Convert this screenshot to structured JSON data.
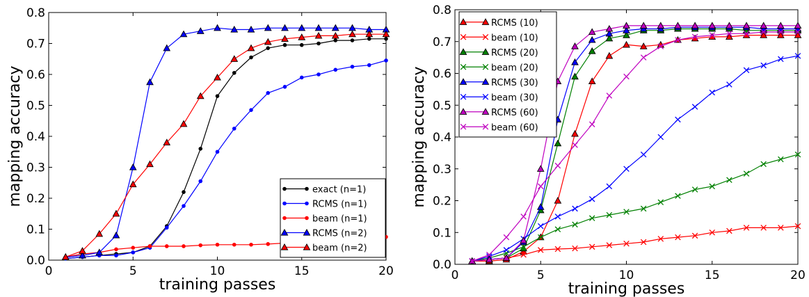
{
  "chart_data": [
    {
      "type": "line",
      "xlabel": "training passes",
      "ylabel": "mapping accuracy",
      "xlim": [
        0,
        20
      ],
      "ylim": [
        0,
        0.8
      ],
      "xticks": [
        "0",
        "5",
        "10",
        "15",
        "20"
      ],
      "yticks": [
        "0.0",
        "0.1",
        "0.2",
        "0.3",
        "0.4",
        "0.5",
        "0.6",
        "0.7",
        "0.8"
      ],
      "grid": false,
      "legend_position": "bottom-right",
      "x": [
        1,
        2,
        3,
        4,
        5,
        6,
        7,
        8,
        9,
        10,
        11,
        12,
        13,
        14,
        15,
        16,
        17,
        18,
        19,
        20
      ],
      "series": [
        {
          "name": "exact (n=1)",
          "color": "#000000",
          "marker": "dot",
          "values": [
            0.005,
            0.01,
            0.015,
            0.02,
            0.025,
            0.045,
            0.11,
            0.22,
            0.36,
            0.53,
            0.605,
            0.655,
            0.685,
            0.695,
            0.695,
            0.7,
            0.71,
            0.71,
            0.715,
            0.715
          ]
        },
        {
          "name": "RCMS (n=1)",
          "color": "#0000ff",
          "marker": "dot",
          "values": [
            0.005,
            0.01,
            0.015,
            0.015,
            0.025,
            0.04,
            0.105,
            0.175,
            0.255,
            0.35,
            0.425,
            0.485,
            0.54,
            0.56,
            0.59,
            0.6,
            0.615,
            0.625,
            0.63,
            0.645
          ]
        },
        {
          "name": "beam (n=1)",
          "color": "#ff0000",
          "marker": "dot",
          "values": [
            0.01,
            0.02,
            0.025,
            0.035,
            0.04,
            0.045,
            0.045,
            0.045,
            0.048,
            0.05,
            0.05,
            0.05,
            0.052,
            0.055,
            0.055,
            0.058,
            0.06,
            0.065,
            0.07,
            0.075
          ]
        },
        {
          "name": "RCMS (n=2)",
          "color": "#0000ff",
          "marker": "triangle",
          "values": [
            0.01,
            0.015,
            0.025,
            0.08,
            0.3,
            0.575,
            0.685,
            0.73,
            0.74,
            0.75,
            0.745,
            0.745,
            0.75,
            0.75,
            0.75,
            0.75,
            0.75,
            0.75,
            0.745,
            0.745
          ]
        },
        {
          "name": "beam (n=2)",
          "color": "#ff0000",
          "marker": "triangle",
          "values": [
            0.01,
            0.03,
            0.085,
            0.15,
            0.245,
            0.31,
            0.38,
            0.44,
            0.53,
            0.59,
            0.65,
            0.685,
            0.705,
            0.715,
            0.72,
            0.725,
            0.725,
            0.73,
            0.73,
            0.73
          ]
        }
      ]
    },
    {
      "type": "line",
      "xlabel": "training passes",
      "ylabel": "mapping accuracy",
      "xlim": [
        0,
        20
      ],
      "ylim": [
        0,
        0.8
      ],
      "xticks": [
        "0",
        "5",
        "10",
        "15",
        "20"
      ],
      "yticks": [
        "0.0",
        "0.1",
        "0.2",
        "0.3",
        "0.4",
        "0.5",
        "0.6",
        "0.7",
        "0.8"
      ],
      "grid": false,
      "legend_position": "top-left",
      "x": [
        1,
        2,
        3,
        4,
        5,
        6,
        7,
        8,
        9,
        10,
        11,
        12,
        13,
        14,
        15,
        16,
        17,
        18,
        19,
        20
      ],
      "series": [
        {
          "name": "RCMS (10)",
          "color": "#ff0000",
          "marker": "triangle",
          "values": [
            0.01,
            0.01,
            0.015,
            0.04,
            0.085,
            0.2,
            0.41,
            0.575,
            0.655,
            0.69,
            0.685,
            0.69,
            0.705,
            0.71,
            0.715,
            0.715,
            0.72,
            0.72,
            0.72,
            0.72
          ]
        },
        {
          "name": "beam (10)",
          "color": "#ff0000",
          "marker": "x",
          "values": [
            0.01,
            0.015,
            0.02,
            0.03,
            0.045,
            0.048,
            0.05,
            0.055,
            0.06,
            0.065,
            0.07,
            0.08,
            0.085,
            0.09,
            0.1,
            0.105,
            0.115,
            0.115,
            0.115,
            0.12
          ]
        },
        {
          "name": "RCMS (20)",
          "color": "#008000",
          "marker": "triangle",
          "values": [
            0.01,
            0.015,
            0.02,
            0.05,
            0.17,
            0.38,
            0.59,
            0.67,
            0.71,
            0.72,
            0.735,
            0.735,
            0.74,
            0.74,
            0.74,
            0.74,
            0.735,
            0.735,
            0.735,
            0.735
          ]
        },
        {
          "name": "beam (20)",
          "color": "#008000",
          "marker": "x",
          "values": [
            0.01,
            0.02,
            0.035,
            0.055,
            0.085,
            0.11,
            0.125,
            0.145,
            0.155,
            0.165,
            0.175,
            0.195,
            0.215,
            0.235,
            0.245,
            0.265,
            0.285,
            0.315,
            0.33,
            0.345
          ]
        },
        {
          "name": "RCMS (30)",
          "color": "#0000ff",
          "marker": "triangle",
          "values": [
            0.01,
            0.015,
            0.02,
            0.07,
            0.18,
            0.455,
            0.635,
            0.705,
            0.725,
            0.735,
            0.74,
            0.74,
            0.745,
            0.745,
            0.745,
            0.745,
            0.745,
            0.74,
            0.74,
            0.74
          ]
        },
        {
          "name": "beam (30)",
          "color": "#0000ff",
          "marker": "x",
          "values": [
            0.01,
            0.025,
            0.045,
            0.08,
            0.12,
            0.15,
            0.175,
            0.205,
            0.245,
            0.3,
            0.345,
            0.4,
            0.455,
            0.495,
            0.54,
            0.565,
            0.61,
            0.625,
            0.645,
            0.655
          ]
        },
        {
          "name": "RCMS (60)",
          "color": "#bf00bf",
          "marker": "triangle",
          "values": [
            0.01,
            0.015,
            0.02,
            0.075,
            0.3,
            0.575,
            0.685,
            0.73,
            0.74,
            0.75,
            0.75,
            0.75,
            0.75,
            0.75,
            0.75,
            0.75,
            0.75,
            0.75,
            0.75,
            0.75
          ]
        },
        {
          "name": "beam (60)",
          "color": "#bf00bf",
          "marker": "x",
          "values": [
            0.01,
            0.03,
            0.085,
            0.15,
            0.245,
            0.31,
            0.375,
            0.44,
            0.53,
            0.59,
            0.65,
            0.685,
            0.705,
            0.715,
            0.72,
            0.725,
            0.725,
            0.73,
            0.73,
            0.73
          ]
        }
      ]
    }
  ]
}
